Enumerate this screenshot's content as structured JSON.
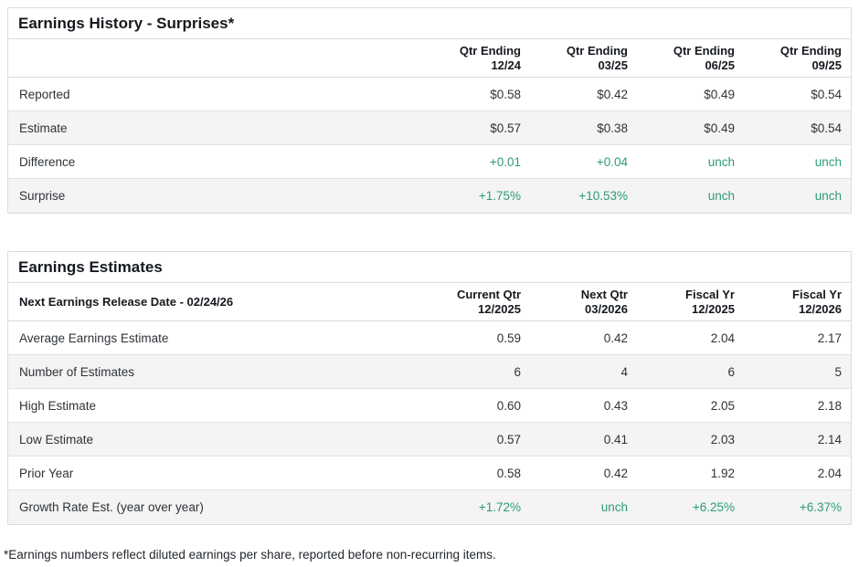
{
  "colors": {
    "positive_green": "#2d9c74",
    "row_stripe": "#f4f4f4",
    "border": "#dcdcdc",
    "heading_text": "#15191e",
    "body_text": "#2e3338"
  },
  "tables": [
    {
      "title": "Earnings History - Surprises*",
      "header_label": "",
      "columns": [
        {
          "line1": "Qtr Ending",
          "line2": "12/24"
        },
        {
          "line1": "Qtr Ending",
          "line2": "03/25"
        },
        {
          "line1": "Qtr Ending",
          "line2": "06/25"
        },
        {
          "line1": "Qtr Ending",
          "line2": "09/25"
        }
      ],
      "rows": [
        {
          "label": "Reported",
          "values": [
            "$0.58",
            "$0.42",
            "$0.49",
            "$0.54"
          ],
          "value_color": "dark"
        },
        {
          "label": "Estimate",
          "values": [
            "$0.57",
            "$0.38",
            "$0.49",
            "$0.54"
          ],
          "value_color": "dark"
        },
        {
          "label": "Difference",
          "values": [
            "+0.01",
            "+0.04",
            "unch",
            "unch"
          ],
          "value_color": "green"
        },
        {
          "label": "Surprise",
          "values": [
            "+1.75%",
            "+10.53%",
            "unch",
            "unch"
          ],
          "value_color": "green"
        }
      ]
    },
    {
      "title": "Earnings Estimates",
      "header_label": "Next Earnings Release Date - 02/24/26",
      "columns": [
        {
          "line1": "Current Qtr",
          "line2": "12/2025"
        },
        {
          "line1": "Next Qtr",
          "line2": "03/2026"
        },
        {
          "line1": "Fiscal Yr",
          "line2": "12/2025"
        },
        {
          "line1": "Fiscal Yr",
          "line2": "12/2026"
        }
      ],
      "rows": [
        {
          "label": "Average Earnings Estimate",
          "values": [
            "0.59",
            "0.42",
            "2.04",
            "2.17"
          ],
          "value_color": "dark"
        },
        {
          "label": "Number of Estimates",
          "values": [
            "6",
            "4",
            "6",
            "5"
          ],
          "value_color": "dark"
        },
        {
          "label": "High Estimate",
          "values": [
            "0.60",
            "0.43",
            "2.05",
            "2.18"
          ],
          "value_color": "dark"
        },
        {
          "label": "Low Estimate",
          "values": [
            "0.57",
            "0.41",
            "2.03",
            "2.14"
          ],
          "value_color": "dark"
        },
        {
          "label": "Prior Year",
          "values": [
            "0.58",
            "0.42",
            "1.92",
            "2.04"
          ],
          "value_color": "dark"
        },
        {
          "label": "Growth Rate Est. (year over year)",
          "values": [
            "+1.72%",
            "unch",
            "+6.25%",
            "+6.37%"
          ],
          "value_color": "green"
        }
      ]
    }
  ],
  "footnote": "*Earnings numbers reflect diluted earnings per share, reported before non-recurring items."
}
